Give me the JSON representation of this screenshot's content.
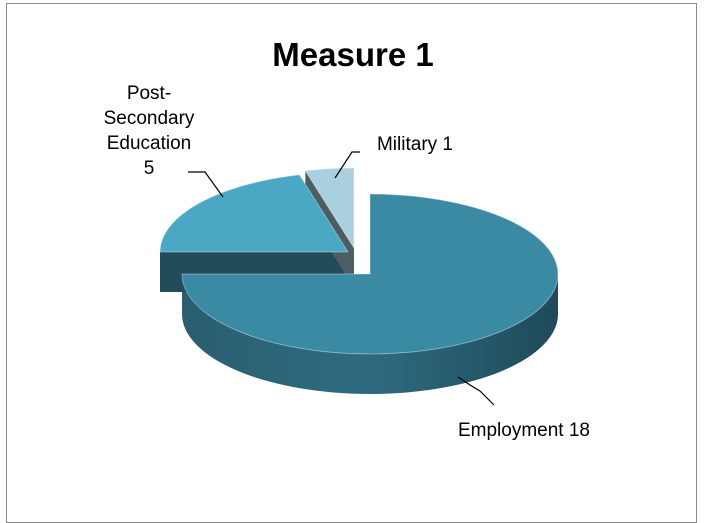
{
  "chart_data": {
    "type": "pie",
    "title": "Measure 1",
    "style": "3d-exploded",
    "labels": [
      "Employment",
      "Post-Secondary Education",
      "Military"
    ],
    "values": [
      18,
      5,
      1
    ],
    "colors": [
      "#3b8aa3",
      "#4ba8c5",
      "#a9d0de"
    ],
    "data_labels": [
      {
        "lines": [
          "Employment 18"
        ]
      },
      {
        "lines": [
          "Post-",
          "Secondary",
          "Education",
          "5"
        ]
      },
      {
        "lines": [
          "Military 1"
        ]
      }
    ]
  }
}
